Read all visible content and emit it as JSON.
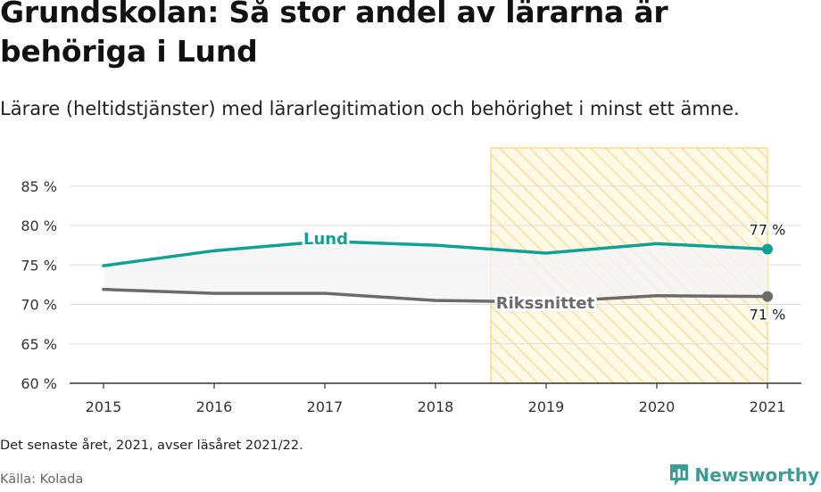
{
  "title": "Grundskolan: Så stor andel av lärarna är behöriga i Lund",
  "subtitle": "Lärare (heltidstjänster) med lärarlegitimation och behörighet i minst ett ämne.",
  "note": "Det senaste året, 2021, avser läsåret 2021/22.",
  "source": "Källa: Kolada",
  "brand": "Newsworthy",
  "colors": {
    "lund": "#11a194",
    "riket": "#6b6b6e",
    "band_fill": "#f4f4f4",
    "highlight_stroke": "#f5d27a",
    "highlight_fill": "#fff9e6",
    "brand": "#3e9c95",
    "grid": "#dddddd"
  },
  "chart_data": {
    "type": "line",
    "x": [
      "2015",
      "2016",
      "2017",
      "2018",
      "2019",
      "2020",
      "2021"
    ],
    "ylim": [
      60,
      88
    ],
    "y_ticks": [
      60,
      65,
      70,
      75,
      80,
      85
    ],
    "y_tick_labels": [
      "60 %",
      "65 %",
      "70 %",
      "75 %",
      "80 %",
      "85 %"
    ],
    "grid": true,
    "highlight_range": [
      "2018.5",
      "2021"
    ],
    "series": [
      {
        "name": "Lund",
        "values": [
          74.9,
          76.8,
          78.0,
          77.5,
          76.5,
          77.7,
          77.0
        ],
        "end_label": "77 %"
      },
      {
        "name": "Rikssnittet",
        "values": [
          71.9,
          71.4,
          71.4,
          70.5,
          70.3,
          71.1,
          71.0
        ],
        "end_label": "71 %"
      }
    ]
  }
}
